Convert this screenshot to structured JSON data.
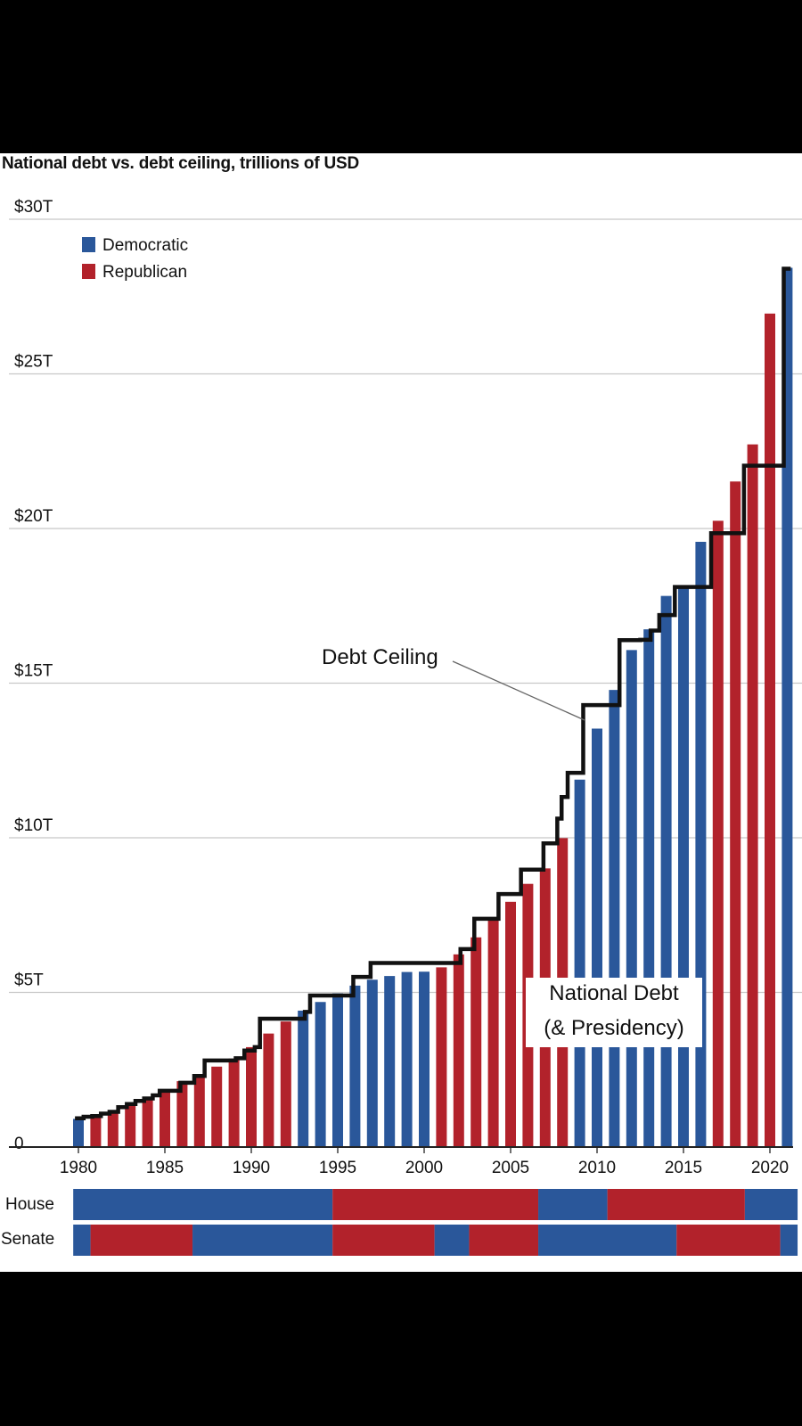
{
  "title": "National debt vs. debt ceiling, trillions of USD",
  "colors": {
    "democratic": "#2a579a",
    "republican": "#b2222b",
    "ceiling": "#111111",
    "grid": "#c8c8c8"
  },
  "chart_data": {
    "type": "bar",
    "title": "National debt vs. debt ceiling, trillions of USD",
    "ylim": [
      0,
      30
    ],
    "y_ticks": [
      {
        "value": 0,
        "label": "0"
      },
      {
        "value": 5,
        "label": "$5T"
      },
      {
        "value": 10,
        "label": "$10T"
      },
      {
        "value": 15,
        "label": "$15T"
      },
      {
        "value": 20,
        "label": "$20T"
      },
      {
        "value": 25,
        "label": "$25T"
      },
      {
        "value": 30,
        "label": "$30T"
      }
    ],
    "x_ticks": [
      1980,
      1985,
      1990,
      1995,
      2000,
      2005,
      2010,
      2015,
      2020
    ],
    "legend": [
      {
        "name": "Democratic",
        "color": "#2a579a"
      },
      {
        "name": "Republican",
        "color": "#b2222b"
      }
    ],
    "years": [
      1980,
      1981,
      1982,
      1983,
      1984,
      1985,
      1986,
      1987,
      1988,
      1989,
      1990,
      1991,
      1992,
      1993,
      1994,
      1995,
      1996,
      1997,
      1998,
      1999,
      2000,
      2001,
      2002,
      2003,
      2004,
      2005,
      2006,
      2007,
      2008,
      2009,
      2010,
      2011,
      2012,
      2013,
      2014,
      2015,
      2016,
      2017,
      2018,
      2019,
      2020,
      2021
    ],
    "debt": [
      0.91,
      1.0,
      1.14,
      1.37,
      1.56,
      1.82,
      2.13,
      2.35,
      2.6,
      2.86,
      3.23,
      3.67,
      4.06,
      4.41,
      4.69,
      4.97,
      5.22,
      5.41,
      5.53,
      5.66,
      5.67,
      5.81,
      6.23,
      6.78,
      7.38,
      7.93,
      8.51,
      9.01,
      9.99,
      11.88,
      13.53,
      14.78,
      16.07,
      16.74,
      17.82,
      18.15,
      19.57,
      20.25,
      21.52,
      22.72,
      26.95,
      28.43
    ],
    "presidency": [
      "D",
      "R",
      "R",
      "R",
      "R",
      "R",
      "R",
      "R",
      "R",
      "R",
      "R",
      "R",
      "R",
      "D",
      "D",
      "D",
      "D",
      "D",
      "D",
      "D",
      "D",
      "R",
      "R",
      "R",
      "R",
      "R",
      "R",
      "R",
      "R",
      "D",
      "D",
      "D",
      "D",
      "D",
      "D",
      "D",
      "D",
      "R",
      "R",
      "R",
      "R",
      "D"
    ],
    "ceiling_steps": [
      [
        1979.8,
        0.93
      ],
      [
        1980.3,
        0.98
      ],
      [
        1980.8,
        1.0
      ],
      [
        1981.3,
        1.08
      ],
      [
        1981.8,
        1.14
      ],
      [
        1982.3,
        1.29
      ],
      [
        1982.8,
        1.39
      ],
      [
        1983.3,
        1.49
      ],
      [
        1983.8,
        1.57
      ],
      [
        1984.3,
        1.67
      ],
      [
        1984.7,
        1.82
      ],
      [
        1985.9,
        2.08
      ],
      [
        1986.7,
        2.3
      ],
      [
        1987.3,
        2.8
      ],
      [
        1989.1,
        2.87
      ],
      [
        1989.6,
        3.12
      ],
      [
        1990.2,
        3.23
      ],
      [
        1990.5,
        4.15
      ],
      [
        1993.1,
        4.37
      ],
      [
        1993.4,
        4.9
      ],
      [
        1995.9,
        5.5
      ],
      [
        1996.9,
        5.95
      ],
      [
        2002.1,
        6.4
      ],
      [
        2002.9,
        7.38
      ],
      [
        2004.3,
        8.18
      ],
      [
        2005.6,
        8.97
      ],
      [
        2006.9,
        9.82
      ],
      [
        2007.7,
        10.62
      ],
      [
        2007.95,
        11.32
      ],
      [
        2008.3,
        12.1
      ],
      [
        2009.2,
        14.29
      ],
      [
        2010.4,
        14.29
      ],
      [
        2011.3,
        16.39
      ],
      [
        2012.5,
        16.4
      ],
      [
        2013.1,
        16.7
      ],
      [
        2013.6,
        17.2
      ],
      [
        2014.5,
        18.11
      ],
      [
        2016.6,
        19.85
      ],
      [
        2018.5,
        22.03
      ],
      [
        2020.8,
        28.4
      ],
      [
        2021.2,
        28.4
      ]
    ],
    "annotations": {
      "ceiling_label": "Debt Ceiling",
      "debt_label_line1": "National Debt",
      "debt_label_line2": "(& Presidency)"
    }
  },
  "control_bars": {
    "house": {
      "label": "House",
      "segments": [
        {
          "party": "D",
          "start": 1979.7,
          "end": 1994.7
        },
        {
          "party": "R",
          "start": 1994.7,
          "end": 2006.6
        },
        {
          "party": "D",
          "start": 2006.6,
          "end": 2010.6
        },
        {
          "party": "R",
          "start": 2010.6,
          "end": 2018.55
        },
        {
          "party": "D",
          "start": 2018.55,
          "end": 2021.6
        }
      ]
    },
    "senate": {
      "label": "Senate",
      "segments": [
        {
          "party": "D",
          "start": 1979.7,
          "end": 1980.7
        },
        {
          "party": "R",
          "start": 1980.7,
          "end": 1986.6
        },
        {
          "party": "D",
          "start": 1986.6,
          "end": 1994.7
        },
        {
          "party": "R",
          "start": 1994.7,
          "end": 2000.6
        },
        {
          "party": "D",
          "start": 2000.6,
          "end": 2002.6
        },
        {
          "party": "R",
          "start": 2002.6,
          "end": 2006.6
        },
        {
          "party": "D",
          "start": 2006.6,
          "end": 2014.6
        },
        {
          "party": "R",
          "start": 2014.6,
          "end": 2020.6
        },
        {
          "party": "D",
          "start": 2020.6,
          "end": 2021.6
        }
      ]
    }
  }
}
